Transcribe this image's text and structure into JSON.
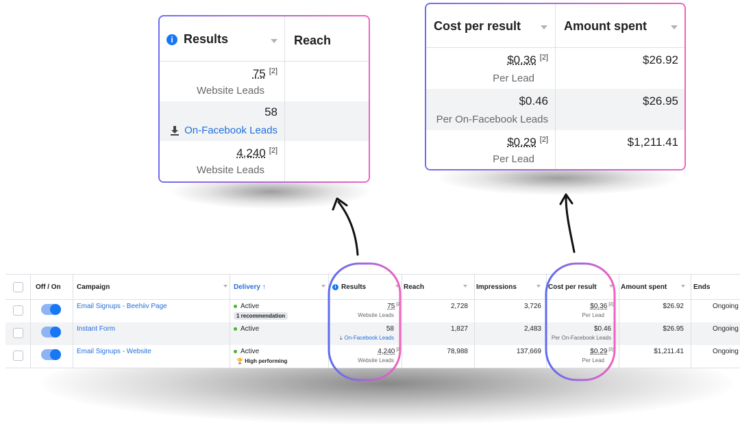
{
  "main_table": {
    "headers": {
      "off_on": "Off / On",
      "campaign": "Campaign",
      "delivery": "Delivery ↑",
      "results": "Results",
      "reach": "Reach",
      "impressions": "Impressions",
      "cost_per_result": "Cost per result",
      "amount_spent": "Amount spent",
      "ends": "Ends"
    },
    "rows": [
      {
        "campaign": "Email Signups - Beehiiv Page",
        "delivery": "Active",
        "badge": "1 recommendation",
        "results": "75",
        "results_sup": "[2]",
        "results_sub": "Website Leads",
        "reach": "2,728",
        "impressions": "3,726",
        "cost": "$0.36",
        "cost_sup": "[2]",
        "cost_sub": "Per Lead",
        "spent": "$26.92",
        "ends": "Ongoing"
      },
      {
        "campaign": "Instant Form",
        "delivery": "Active",
        "badge": "",
        "results": "58",
        "results_sup": "",
        "results_sub": "On-Facebook Leads",
        "reach": "1,827",
        "impressions": "2,483",
        "cost": "$0.46",
        "cost_sup": "",
        "cost_sub": "Per On-Facebook Leads",
        "spent": "$26.95",
        "ends": "Ongoing"
      },
      {
        "campaign": "Email Signups - Website",
        "delivery": "Active",
        "badge": "High performing",
        "results": "4,240",
        "results_sup": "[2]",
        "results_sub": "Website Leads",
        "reach": "78,988",
        "impressions": "137,669",
        "cost": "$0.29",
        "cost_sup": "[2]",
        "cost_sub": "Per Lead",
        "spent": "$1,211.41",
        "ends": "Ongoing"
      }
    ]
  },
  "zoom_results": {
    "header_results": "Results",
    "header_reach": "Reach",
    "rows": [
      {
        "value": "75",
        "sup": "[2]",
        "sub": "Website Leads"
      },
      {
        "value": "58",
        "sup": "",
        "sub": "On-Facebook Leads"
      },
      {
        "value": "4,240",
        "sup": "[2]",
        "sub": "Website Leads"
      }
    ]
  },
  "zoom_cost": {
    "header_cost": "Cost per result",
    "header_spent": "Amount spent",
    "rows": [
      {
        "cost": "$0.36",
        "sup": "[2]",
        "sub": "Per Lead",
        "spent": "$26.92"
      },
      {
        "cost": "$0.46",
        "sup": "",
        "sub": "Per On-Facebook Leads",
        "spent": "$26.95"
      },
      {
        "cost": "$0.29",
        "sup": "[2]",
        "sub": "Per Lead",
        "spent": "$1,211.41"
      }
    ]
  },
  "colors": {
    "link_blue": "#216fdb",
    "toggle_on": "#1877f2",
    "active_green": "#42b72a",
    "highlight_gradient_start": "#6f6cf0",
    "highlight_gradient_end": "#f062c0"
  },
  "icons": [
    "info-icon",
    "download-icon",
    "sort-caret-icon",
    "trophy-icon",
    "arrow-icon"
  ]
}
